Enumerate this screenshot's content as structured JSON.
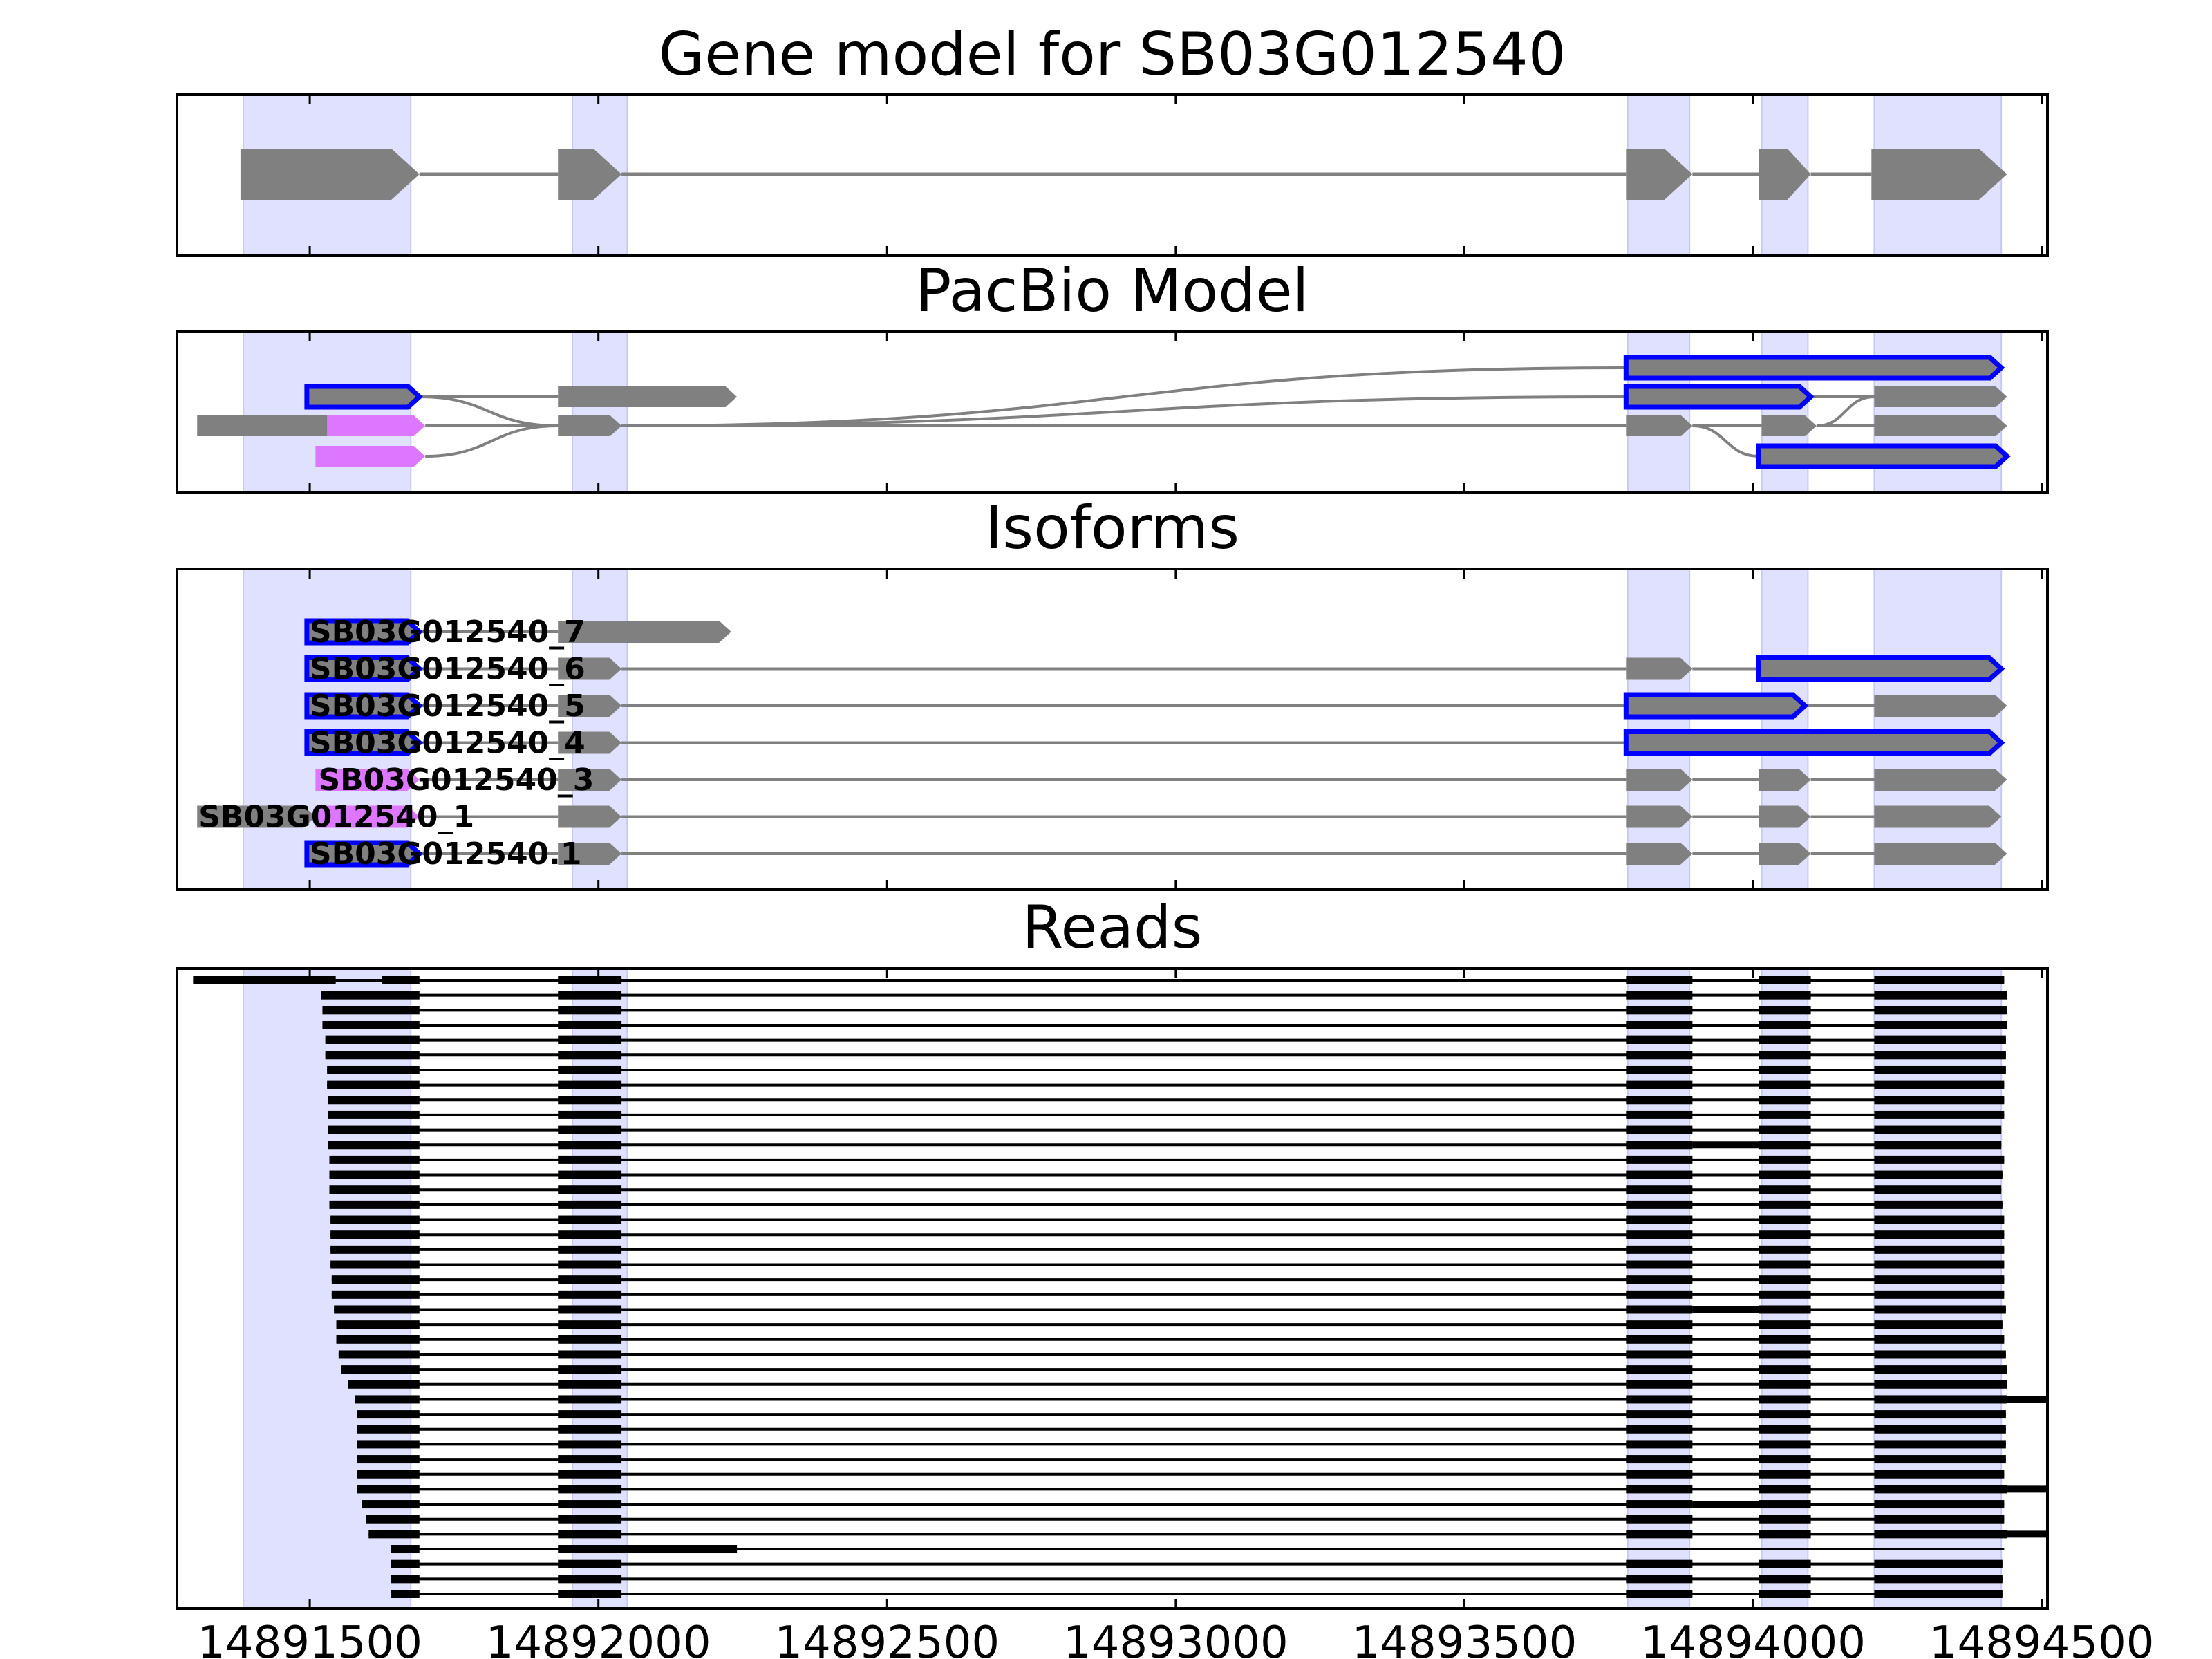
{
  "chart_data": {
    "type": "gene-structure",
    "xlim": [
      14891270,
      14894510
    ],
    "x_ticks": [
      14891500,
      14892000,
      14892500,
      14893000,
      14893500,
      14894000,
      14894500
    ],
    "tick_labels": [
      "14891500",
      "14892000",
      "14892500",
      "14893000",
      "14893500",
      "14894000",
      "14894500"
    ],
    "colors": {
      "gene": "#808080",
      "highlight": "#e0e0ff",
      "isoform_outline": "#0000ff",
      "isoform_fill_alt": "#dd77ff",
      "read": "#000000"
    },
    "highlight_regions": [
      [
        14891385,
        14891675
      ],
      [
        14891955,
        14892050
      ],
      [
        14893783,
        14893890
      ],
      [
        14894015,
        14894095
      ],
      [
        14894210,
        14894430
      ]
    ],
    "panels": [
      {
        "title": "Gene model for SB03G012540",
        "kind": "gene_model",
        "exons": [
          [
            14891380,
            14891690
          ],
          [
            14891930,
            14892040
          ],
          [
            14893780,
            14893895
          ],
          [
            14894010,
            14894100
          ],
          [
            14894205,
            14894440
          ]
        ]
      },
      {
        "title": "PacBio Model",
        "kind": "pacbio",
        "tracks": [
          {
            "name": "n1",
            "exons": [
              [
                14891305,
                14891555
              ]
            ],
            "style": "gray"
          },
          {
            "name": "n2",
            "exons": [
              [
                14891495,
                14891690
              ]
            ],
            "style": "blue"
          },
          {
            "name": "n3",
            "exons": [
              [
                14891530,
                14891700
              ]
            ],
            "style": "pink"
          },
          {
            "name": "n4",
            "exons": [
              [
                14891510,
                14891700
              ]
            ],
            "style": "pink"
          },
          {
            "name": "n5",
            "exons": [
              [
                14891930,
                14892240
              ]
            ],
            "style": "gray"
          },
          {
            "name": "n6",
            "exons": [
              [
                14891930,
                14892040
              ]
            ],
            "style": "gray"
          },
          {
            "name": "n7",
            "exons": [
              [
                14893780,
                14894430
              ]
            ],
            "style": "blue"
          },
          {
            "name": "n8",
            "exons": [
              [
                14893780,
                14894100
              ]
            ],
            "style": "blue"
          },
          {
            "name": "n9",
            "exons": [
              [
                14893780,
                14893895
              ]
            ],
            "style": "gray"
          },
          {
            "name": "n10",
            "exons": [
              [
                14894015,
                14894110
              ]
            ],
            "style": "gray"
          },
          {
            "name": "n11",
            "exons": [
              [
                14894010,
                14894440
              ]
            ],
            "style": "blue"
          },
          {
            "name": "n12",
            "exons": [
              [
                14894210,
                14894440
              ]
            ],
            "style": "gray"
          }
        ]
      },
      {
        "title": "Isoforms",
        "kind": "isoforms",
        "isoforms": [
          {
            "label": "SB03G012540_7",
            "first_exon_style": "blue",
            "exons": [
              [
                14891495,
                14891690
              ],
              [
                14891930,
                14892230
              ]
            ],
            "blue_exons": []
          },
          {
            "label": "SB03G012540_6",
            "first_exon_style": "blue",
            "exons": [
              [
                14891495,
                14891690
              ],
              [
                14891930,
                14892040
              ],
              [
                14893780,
                14893895
              ],
              [
                14894010,
                14894430
              ]
            ],
            "blue_exons": [
              3
            ]
          },
          {
            "label": "SB03G012540_5",
            "first_exon_style": "blue",
            "exons": [
              [
                14891495,
                14891690
              ],
              [
                14891930,
                14892040
              ],
              [
                14893780,
                14894090
              ],
              [
                14894210,
                14894440
              ]
            ],
            "blue_exons": [
              2
            ]
          },
          {
            "label": "SB03G012540_4",
            "first_exon_style": "blue",
            "exons": [
              [
                14891495,
                14891690
              ],
              [
                14891930,
                14892040
              ],
              [
                14893780,
                14894430
              ]
            ],
            "blue_exons": [
              2
            ]
          },
          {
            "label": "SB03G012540_3",
            "first_exon_style": "pink",
            "exons": [
              [
                14891510,
                14891690
              ],
              [
                14891930,
                14892040
              ],
              [
                14893780,
                14893895
              ],
              [
                14894010,
                14894100
              ],
              [
                14894210,
                14894440
              ]
            ],
            "blue_exons": []
          },
          {
            "label": "SB03G012540_1",
            "first_exon_style": "pink",
            "exons": [
              [
                14891305,
                14891690
              ],
              [
                14891930,
                14892040
              ],
              [
                14893780,
                14893895
              ],
              [
                14894010,
                14894100
              ],
              [
                14894210,
                14894430
              ]
            ],
            "blue_exons": []
          },
          {
            "label": "SB03G012540.1",
            "first_exon_style": "blue",
            "exons": [
              [
                14891495,
                14891690
              ],
              [
                14891930,
                14892040
              ],
              [
                14893780,
                14893895
              ],
              [
                14894010,
                14894100
              ],
              [
                14894210,
                14894440
              ]
            ],
            "blue_exons": []
          }
        ]
      },
      {
        "title": "Reads",
        "kind": "reads",
        "read_starts": [
          14891298,
          14891520,
          14891522,
          14891522,
          14891527,
          14891527,
          14891530,
          14891530,
          14891532,
          14891532,
          14891532,
          14891532,
          14891534,
          14891534,
          14891534,
          14891534,
          14891536,
          14891536,
          14891536,
          14891536,
          14891538,
          14891538,
          14891542,
          14891546,
          14891546,
          14891550,
          14891555,
          14891566,
          14891578,
          14891582,
          14891582,
          14891582,
          14891582,
          14891582,
          14891582,
          14891590,
          14891598,
          14891602,
          14891640,
          14891640,
          14891640,
          14891640
        ],
        "read_ends": [
          14894435,
          14894440,
          14894440,
          14894440,
          14894438,
          14894438,
          14894438,
          14894435,
          14894435,
          14894435,
          14894430,
          14894430,
          14894435,
          14894432,
          14894430,
          14894432,
          14894435,
          14894435,
          14894435,
          14894435,
          14894435,
          14894435,
          14894438,
          14894432,
          14894435,
          14894438,
          14894440,
          14894440,
          14894510,
          14894438,
          14894438,
          14894438,
          14894438,
          14894435,
          14894510,
          14894435,
          14894435,
          14894510,
          14894435,
          14894432,
          14894432,
          14894432
        ],
        "special": {
          "first_read_first_block_end": 14891545,
          "first_read_second_block_start": 14891625,
          "retained_intron_rows": [
            11,
            22,
            35
          ],
          "long_second_exon_row": 38,
          "long_second_exon_end": 14892240
        }
      }
    ]
  }
}
